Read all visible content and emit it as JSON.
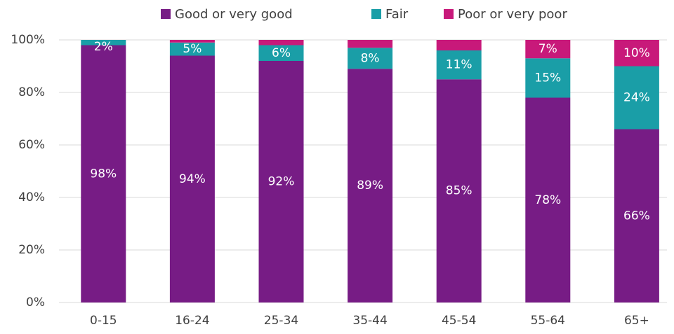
{
  "chart_data": {
    "type": "stacked_bar",
    "categories": [
      "0-15",
      "16-24",
      "25-34",
      "35-44",
      "45-54",
      "55-64",
      "65+"
    ],
    "series": [
      {
        "name": "Good or very good",
        "color": "#771c85",
        "values": [
          98,
          94,
          92,
          89,
          85,
          78,
          66
        ],
        "value_labels": [
          "98%",
          "94%",
          "92%",
          "89%",
          "85%",
          "78%",
          "66%"
        ]
      },
      {
        "name": "Fair",
        "color": "#1a9ea7",
        "values": [
          2,
          5,
          6,
          8,
          11,
          15,
          24
        ],
        "value_labels": [
          "2%",
          "5%",
          "6%",
          "8%",
          "11%",
          "15%",
          "24%"
        ]
      },
      {
        "name": "Poor or very poor",
        "color": "#c8197a",
        "values": [
          0,
          1,
          2,
          3,
          4,
          7,
          10
        ],
        "value_labels": [
          null,
          null,
          null,
          null,
          null,
          "7%",
          "10%"
        ]
      }
    ],
    "ylim": [
      0,
      100
    ],
    "yticks": [
      {
        "value": 0,
        "label": "0%"
      },
      {
        "value": 20,
        "label": "20%"
      },
      {
        "value": 40,
        "label": "40%"
      },
      {
        "value": 60,
        "label": "60%"
      },
      {
        "value": 80,
        "label": "80%"
      },
      {
        "value": 100,
        "label": "100%"
      }
    ],
    "grid": true,
    "legend": "top"
  }
}
